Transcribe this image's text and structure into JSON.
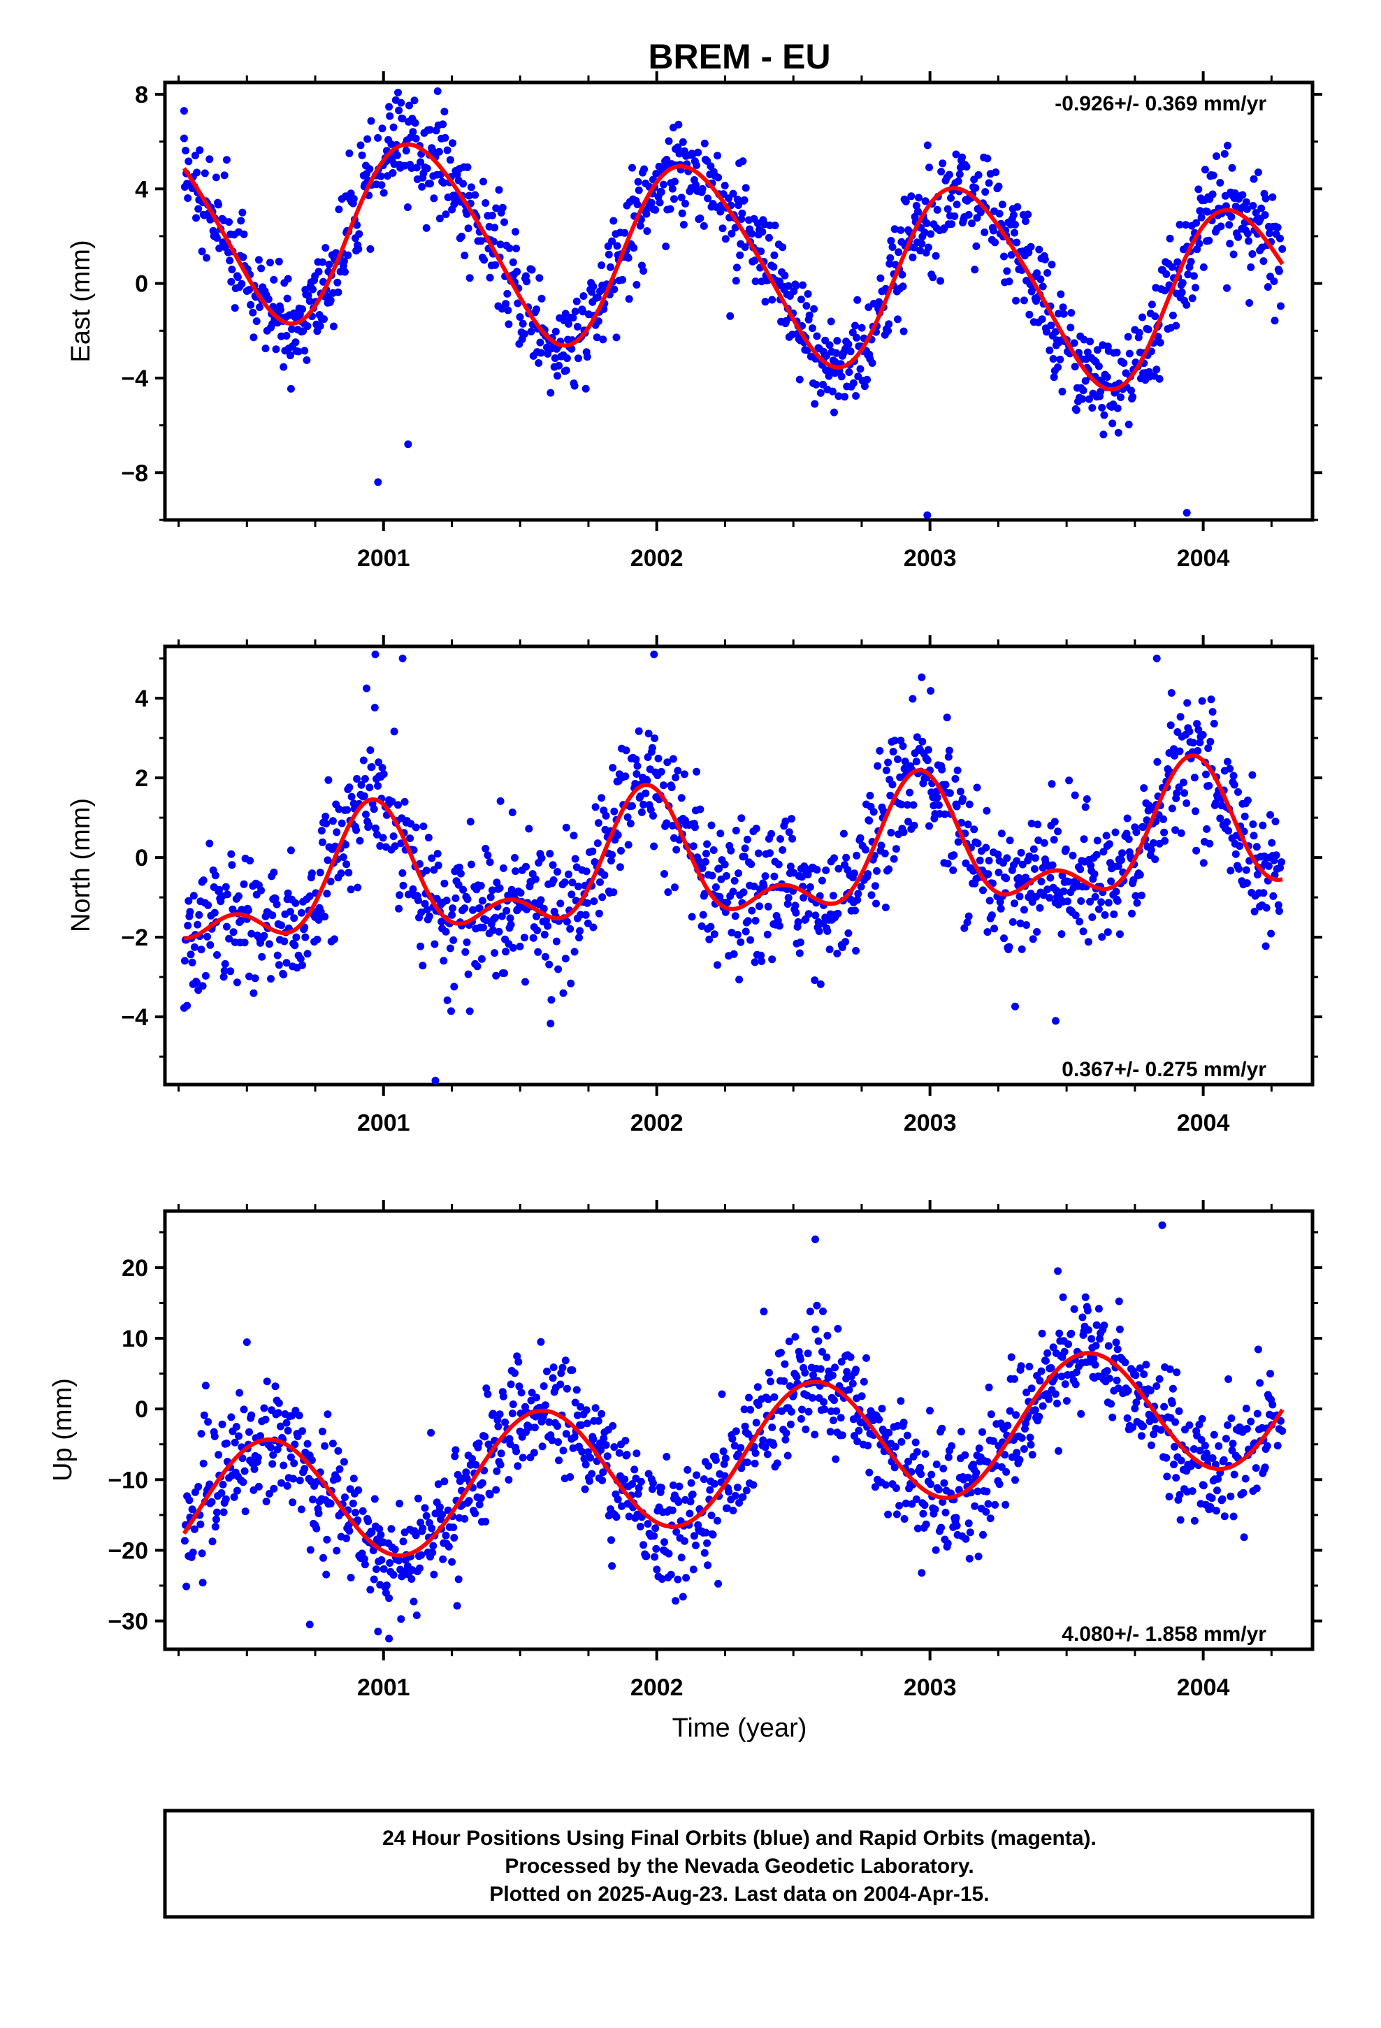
{
  "title": "BREM - EU",
  "xlabel": "Time (year)",
  "footer": {
    "line1": "24 Hour Positions Using Final Orbits (blue) and Rapid Orbits (magenta).",
    "line2": "Processed by the Nevada Geodetic Laboratory.",
    "line3": "Plotted on 2025-Aug-23. Last data on 2004-Apr-15."
  },
  "colors": {
    "final_orbits": "#0000ff",
    "model_fit": "#ff0000",
    "frame": "#000000"
  },
  "chart_data": [
    {
      "type": "scatter",
      "name": "east",
      "ylabel": "East (mm)",
      "xlim": [
        2000.2,
        2004.4
      ],
      "ylim": [
        -10,
        8.5
      ],
      "yticks": [
        -8,
        -4,
        0,
        4,
        8
      ],
      "ytick_labels": [
        "−8",
        "−4",
        "0",
        "4",
        "8"
      ],
      "xticks": [
        2001,
        2002,
        2003,
        2004
      ],
      "xtick_labels": [
        "2001",
        "2002",
        "2003",
        "2004"
      ],
      "rate_label": "-0.926+/- 0.369 mm/yr",
      "rate_position": "top-right",
      "start": 2000.27,
      "end": 2004.29,
      "model": {
        "offset": 0.9,
        "rate": -0.926,
        "annual_amp": 3.9,
        "annual_phase": 2001.13,
        "semiannual_amp": 0.45,
        "semiannual_phase": 2000.98
      },
      "scatter_sd": 1.1,
      "outliers": [
        [
          2000.98,
          -8.4
        ],
        [
          2001.09,
          -6.8
        ],
        [
          2002.99,
          -9.8
        ],
        [
          2003.94,
          -9.7
        ],
        [
          2000.27,
          7.3
        ],
        [
          2001.17,
          6.5
        ]
      ]
    },
    {
      "type": "scatter",
      "name": "north",
      "ylabel": "North (mm)",
      "xlim": [
        2000.2,
        2004.4
      ],
      "ylim": [
        -5.7,
        5.3
      ],
      "yticks": [
        -4,
        -2,
        0,
        2,
        4
      ],
      "ytick_labels": [
        "−4",
        "−2",
        "0",
        "2",
        "4"
      ],
      "xticks": [
        2001,
        2002,
        2003,
        2004
      ],
      "xtick_labels": [
        "2001",
        "2002",
        "2003",
        "2004"
      ],
      "rate_label": "0.367+/- 0.275 mm/yr",
      "rate_position": "bottom-right",
      "start": 2000.27,
      "end": 2004.29,
      "model": {
        "offset": -0.2,
        "rate": 0.367,
        "annual_amp": 1.35,
        "annual_phase": 2000.96,
        "semiannual_amp": 0.8,
        "semiannual_phase": 2000.96
      },
      "scatter_sd": 0.85,
      "outliers": [
        [
          2001.19,
          -5.6
        ],
        [
          2000.97,
          5.1
        ],
        [
          2001.07,
          5.0
        ],
        [
          2001.99,
          5.1
        ],
        [
          2003.83,
          5.0
        ],
        [
          2003.46,
          -4.1
        ]
      ]
    },
    {
      "type": "scatter",
      "name": "up",
      "ylabel": "Up (mm)",
      "xlim": [
        2000.2,
        2004.4
      ],
      "ylim": [
        -34,
        28
      ],
      "yticks": [
        -30,
        -20,
        -10,
        0,
        10,
        20
      ],
      "ytick_labels": [
        "−30",
        "−20",
        "−10",
        "0",
        "10",
        "20"
      ],
      "xticks": [
        2001,
        2002,
        2003,
        2004
      ],
      "xtick_labels": [
        "2001",
        "2002",
        "2003",
        "2004"
      ],
      "rate_label": "4.080+/- 1.858 mm/yr",
      "rate_position": "bottom-right",
      "start": 2000.27,
      "end": 2004.29,
      "model": {
        "offset": -6.5,
        "rate": 4.08,
        "annual_amp": 9.2,
        "annual_phase": 2000.57,
        "semiannual_amp": 0.0,
        "semiannual_phase": 2000.0
      },
      "scatter_sd": 4.2,
      "outliers": [
        [
          2003.85,
          26.0
        ],
        [
          2002.58,
          24.0
        ],
        [
          2001.02,
          -32.5
        ],
        [
          2000.98,
          -31.5
        ],
        [
          2000.73,
          -30.5
        ],
        [
          2002.18,
          -17.5
        ]
      ]
    }
  ]
}
